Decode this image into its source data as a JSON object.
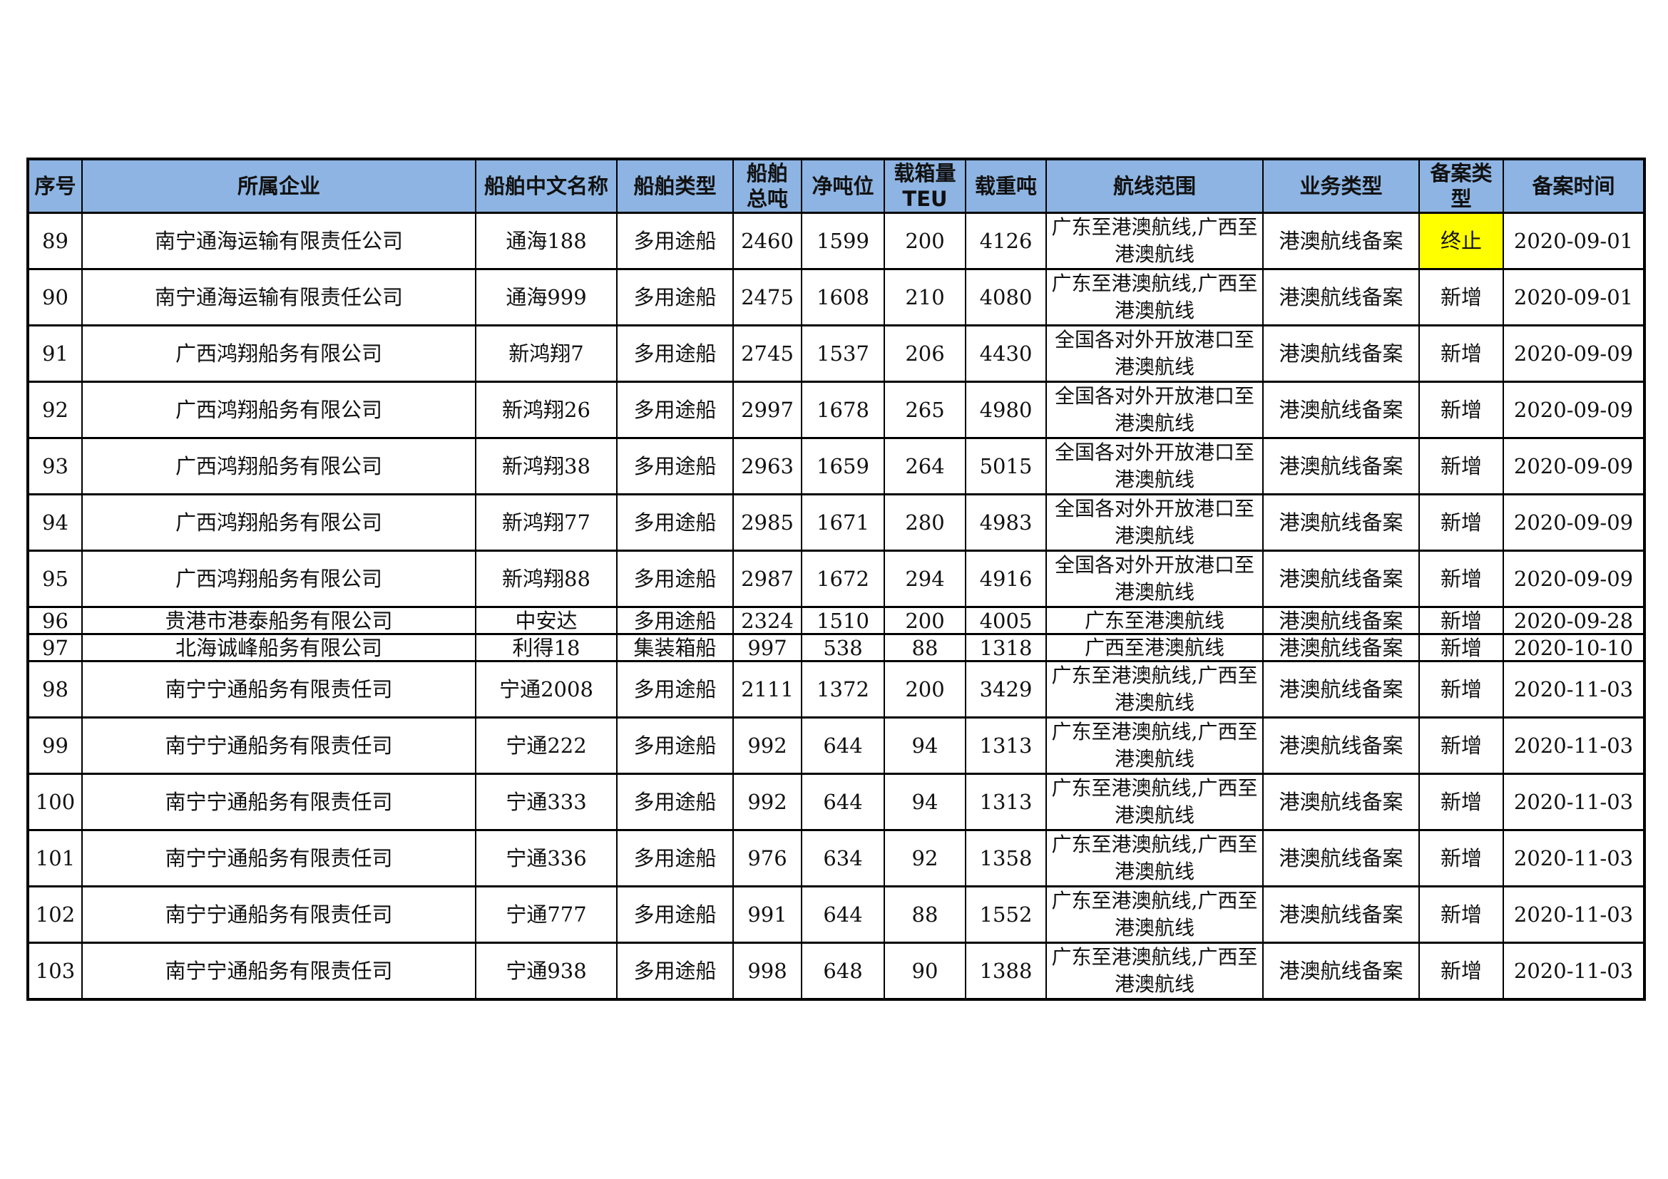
{
  "headers": [
    "序号",
    "所属企业",
    "船舶中文名称",
    "船舶类型",
    "船舶总吨",
    "净吨位",
    "载箱量TEU",
    "载重吨",
    "航线范围",
    "业务类型",
    "备案类型",
    "备案时间"
  ],
  "header_lines": {
    "gross": [
      "船舶",
      "总吨"
    ],
    "teu": [
      "载箱量",
      "TEU"
    ],
    "filing_type": [
      "备案类",
      "型"
    ]
  },
  "highlight_color": "#ffff00",
  "header_color": "#8db4e2",
  "rows": [
    {
      "no": "89",
      "company": "南宁通海运输有限责任公司",
      "ship": "通海188",
      "type": "多用途船",
      "gross": "2460",
      "net": "1599",
      "teu": "200",
      "dwt": "4126",
      "route": "广东至港澳航线,广西至港澳航线",
      "business": "港澳航线备案",
      "filing": "终止",
      "date": "2020-09-01",
      "highlight": true
    },
    {
      "no": "90",
      "company": "南宁通海运输有限责任公司",
      "ship": "通海999",
      "type": "多用途船",
      "gross": "2475",
      "net": "1608",
      "teu": "210",
      "dwt": "4080",
      "route": "广东至港澳航线,广西至港澳航线",
      "business": "港澳航线备案",
      "filing": "新增",
      "date": "2020-09-01"
    },
    {
      "no": "91",
      "company": "广西鸿翔船务有限公司",
      "ship": "新鸿翔7",
      "type": "多用途船",
      "gross": "2745",
      "net": "1537",
      "teu": "206",
      "dwt": "4430",
      "route": "全国各对外开放港口至港澳航线",
      "business": "港澳航线备案",
      "filing": "新增",
      "date": "2020-09-09"
    },
    {
      "no": "92",
      "company": "广西鸿翔船务有限公司",
      "ship": "新鸿翔26",
      "type": "多用途船",
      "gross": "2997",
      "net": "1678",
      "teu": "265",
      "dwt": "4980",
      "route": "全国各对外开放港口至港澳航线",
      "business": "港澳航线备案",
      "filing": "新增",
      "date": "2020-09-09"
    },
    {
      "no": "93",
      "company": "广西鸿翔船务有限公司",
      "ship": "新鸿翔38",
      "type": "多用途船",
      "gross": "2963",
      "net": "1659",
      "teu": "264",
      "dwt": "5015",
      "route": "全国各对外开放港口至港澳航线",
      "business": "港澳航线备案",
      "filing": "新增",
      "date": "2020-09-09"
    },
    {
      "no": "94",
      "company": "广西鸿翔船务有限公司",
      "ship": "新鸿翔77",
      "type": "多用途船",
      "gross": "2985",
      "net": "1671",
      "teu": "280",
      "dwt": "4983",
      "route": "全国各对外开放港口至港澳航线",
      "business": "港澳航线备案",
      "filing": "新增",
      "date": "2020-09-09"
    },
    {
      "no": "95",
      "company": "广西鸿翔船务有限公司",
      "ship": "新鸿翔88",
      "type": "多用途船",
      "gross": "2987",
      "net": "1672",
      "teu": "294",
      "dwt": "4916",
      "route": "全国各对外开放港口至港澳航线",
      "business": "港澳航线备案",
      "filing": "新增",
      "date": "2020-09-09"
    },
    {
      "no": "96",
      "company": "贵港市港泰船务有限公司",
      "ship": "中安达",
      "type": "多用途船",
      "gross": "2324",
      "net": "1510",
      "teu": "200",
      "dwt": "4005",
      "route": "广东至港澳航线",
      "business": "港澳航线备案",
      "filing": "新增",
      "date": "2020-09-28",
      "short": true
    },
    {
      "no": "97",
      "company": "北海诚峰船务有限公司",
      "ship": "利得18",
      "type": "集装箱船",
      "gross": "997",
      "net": "538",
      "teu": "88",
      "dwt": "1318",
      "route": "广西至港澳航线",
      "business": "港澳航线备案",
      "filing": "新增",
      "date": "2020-10-10",
      "short": true
    },
    {
      "no": "98",
      "company": "南宁宁通船务有限责任司",
      "ship": "宁通2008",
      "type": "多用途船",
      "gross": "2111",
      "net": "1372",
      "teu": "200",
      "dwt": "3429",
      "route": "广东至港澳航线,广西至港澳航线",
      "business": "港澳航线备案",
      "filing": "新增",
      "date": "2020-11-03"
    },
    {
      "no": "99",
      "company": "南宁宁通船务有限责任司",
      "ship": "宁通222",
      "type": "多用途船",
      "gross": "992",
      "net": "644",
      "teu": "94",
      "dwt": "1313",
      "route": "广东至港澳航线,广西至港澳航线",
      "business": "港澳航线备案",
      "filing": "新增",
      "date": "2020-11-03"
    },
    {
      "no": "100",
      "company": "南宁宁通船务有限责任司",
      "ship": "宁通333",
      "type": "多用途船",
      "gross": "992",
      "net": "644",
      "teu": "94",
      "dwt": "1313",
      "route": "广东至港澳航线,广西至港澳航线",
      "business": "港澳航线备案",
      "filing": "新增",
      "date": "2020-11-03"
    },
    {
      "no": "101",
      "company": "南宁宁通船务有限责任司",
      "ship": "宁通336",
      "type": "多用途船",
      "gross": "976",
      "net": "634",
      "teu": "92",
      "dwt": "1358",
      "route": "广东至港澳航线,广西至港澳航线",
      "business": "港澳航线备案",
      "filing": "新增",
      "date": "2020-11-03"
    },
    {
      "no": "102",
      "company": "南宁宁通船务有限责任司",
      "ship": "宁通777",
      "type": "多用途船",
      "gross": "991",
      "net": "644",
      "teu": "88",
      "dwt": "1552",
      "route": "广东至港澳航线,广西至港澳航线",
      "business": "港澳航线备案",
      "filing": "新增",
      "date": "2020-11-03"
    },
    {
      "no": "103",
      "company": "南宁宁通船务有限责任司",
      "ship": "宁通938",
      "type": "多用途船",
      "gross": "998",
      "net": "648",
      "teu": "90",
      "dwt": "1388",
      "route": "广东至港澳航线,广西至港澳航线",
      "business": "港澳航线备案",
      "filing": "新增",
      "date": "2020-11-03"
    }
  ]
}
